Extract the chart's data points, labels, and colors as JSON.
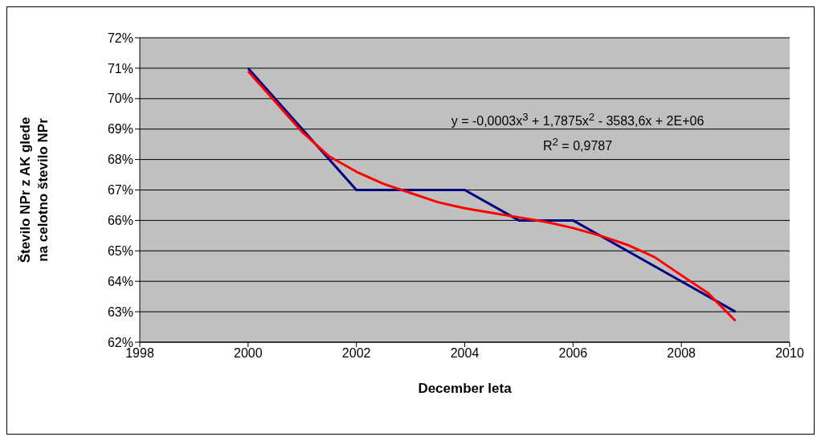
{
  "chart_data": {
    "type": "line",
    "xlabel": "December leta",
    "ylabel": "Število NPr z AK glede na celotno število NPr",
    "xlim": [
      1998,
      2010
    ],
    "xticks": [
      1998,
      2000,
      2002,
      2004,
      2006,
      2008,
      2010
    ],
    "ylim": [
      62,
      72
    ],
    "yticks": [
      {
        "value": 62,
        "label": "62%"
      },
      {
        "value": 63,
        "label": "63%"
      },
      {
        "value": 64,
        "label": "64%"
      },
      {
        "value": 65,
        "label": "65%"
      },
      {
        "value": 66,
        "label": "66%"
      },
      {
        "value": 67,
        "label": "67%"
      },
      {
        "value": 68,
        "label": "68%"
      },
      {
        "value": 69,
        "label": "69%"
      },
      {
        "value": 70,
        "label": "70%"
      },
      {
        "value": 71,
        "label": "71%"
      },
      {
        "value": 72,
        "label": "72%"
      }
    ],
    "grid": "y",
    "marker": "none",
    "line_style": "solid",
    "series": [
      {
        "color": "#000080",
        "x": [
          2000,
          2001,
          2002,
          2003,
          2004,
          2005,
          2006,
          2007,
          2008,
          2009
        ],
        "values": [
          71,
          69,
          67,
          67,
          67,
          66,
          66,
          65,
          64,
          63
        ]
      },
      {
        "type": "line",
        "color": "#ff0000",
        "x": [
          2000,
          2000.5,
          2001,
          2001.5,
          2002,
          2002.5,
          2003,
          2003.5,
          2004,
          2004.5,
          2005,
          2005.5,
          2006,
          2006.5,
          2007,
          2007.5,
          2008,
          2008.5,
          2009
        ],
        "values": [
          70.9,
          69.9,
          68.9,
          68.1,
          67.6,
          67.2,
          66.9,
          66.6,
          66.4,
          66.25,
          66.1,
          65.95,
          65.75,
          65.5,
          65.2,
          64.8,
          64.2,
          63.6,
          62.7
        ]
      }
    ],
    "annotations": [
      "y = -0,0003x$^{3}$ + 1,7875x$^{2}$ - 3583,6x + 2E+06",
      "R$^{2}$ = 0,9787"
    ]
  }
}
